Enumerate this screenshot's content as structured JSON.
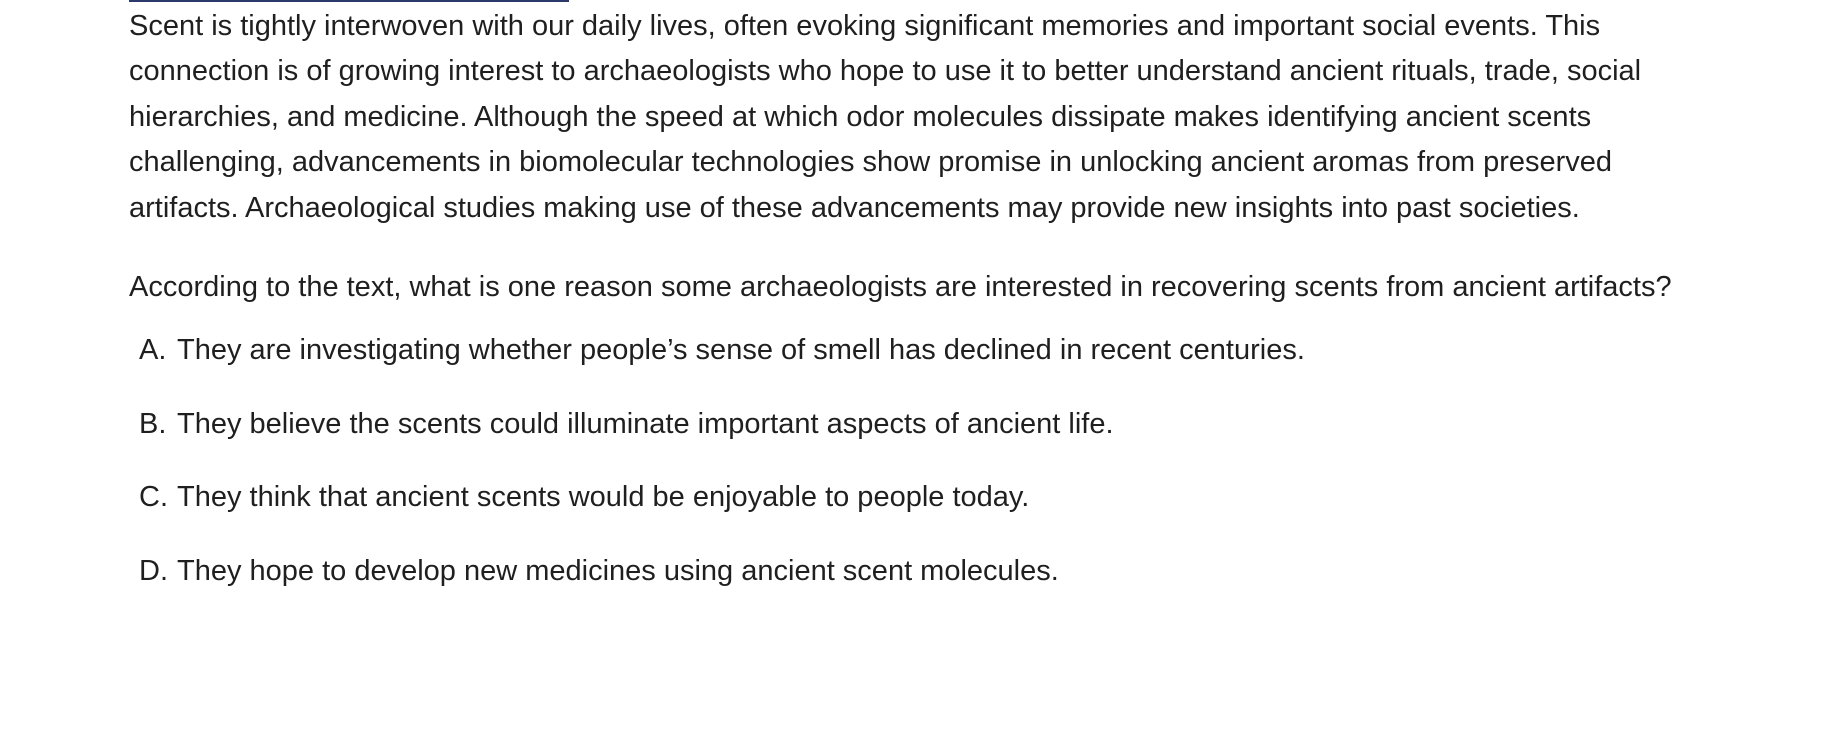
{
  "passage": {
    "text": "Scent is tightly interwoven with our daily lives, often evoking significant memories and important social events. This connection is of growing interest to archaeologists who hope to use it to better understand ancient rituals, trade, social hierarchies, and medicine. Although the speed at which odor molecules dissipate makes identifying ancient scents challenging, advancements in biomolecular technologies show promise in unlocking ancient aromas from preserved artifacts. Archaeological studies making use of these advancements may provide new insights into past societies."
  },
  "question": {
    "text": "According to the text, what is one reason some archaeologists are interested in recovering scents from ancient artifacts?"
  },
  "choices": [
    {
      "letter": "A.",
      "text": "They are investigating whether people’s sense of smell has declined in recent centuries."
    },
    {
      "letter": "B.",
      "text": "They believe the scents could illuminate important aspects of ancient life."
    },
    {
      "letter": "C.",
      "text": "They think that ancient scents would be enjoyable to people today."
    },
    {
      "letter": "D.",
      "text": "They hope to develop new medicines using ancient scent molecules."
    }
  ]
}
